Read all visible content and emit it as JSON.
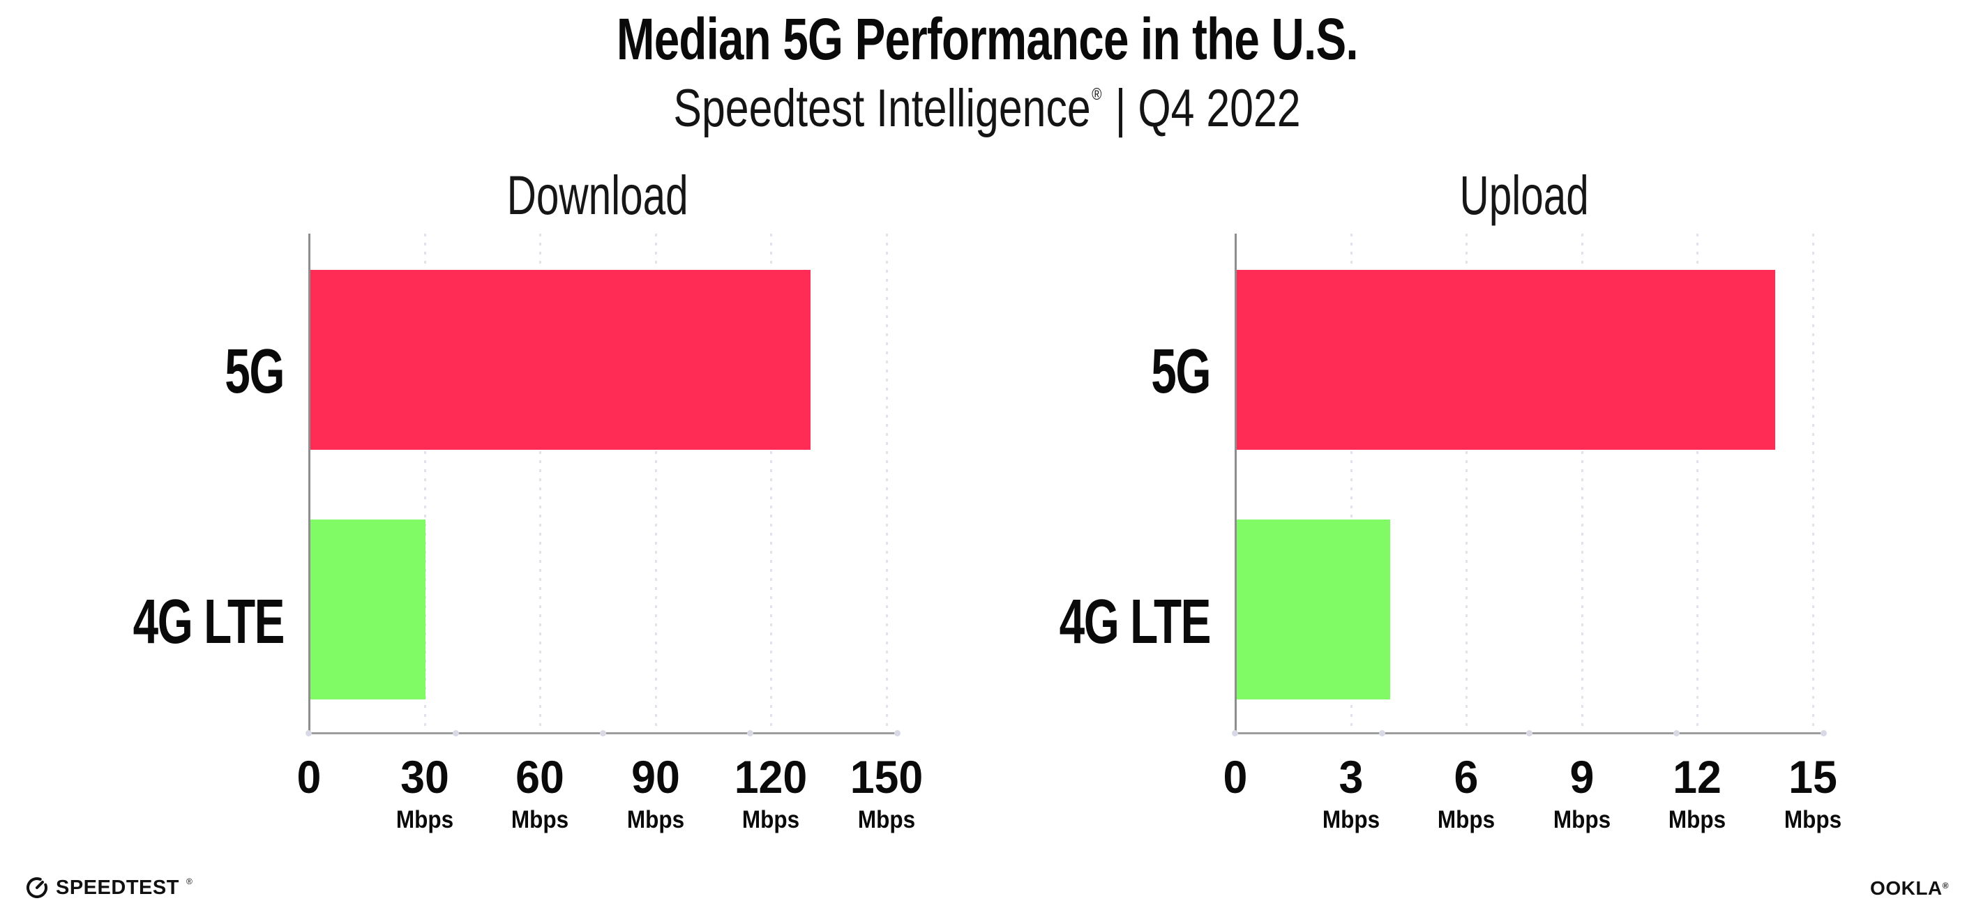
{
  "header": {
    "title": "Median 5G Performance in the U.S.",
    "subtitle_brand": "Speedtest Intelligence",
    "subtitle_reg": "®",
    "subtitle_rest": "| Q4 2022"
  },
  "chart_data": {
    "type": "bar",
    "orientation": "horizontal",
    "title": "Median 5G Performance in the U.S.",
    "subtitle": "Speedtest Intelligence® | Q4 2022",
    "categories": [
      "5G",
      "4G LTE"
    ],
    "bar_colors": [
      "#FF2D55",
      "#80FB66"
    ],
    "unit": "Mbps",
    "grid": "dotted-vertical-at-ticks",
    "legend": "none",
    "panels": [
      {
        "title": "Download",
        "values": [
          130,
          30
        ],
        "xlim": [
          0,
          150
        ],
        "xticks": [
          0,
          30,
          60,
          90,
          120,
          150
        ]
      },
      {
        "title": "Upload",
        "values": [
          14,
          4
        ],
        "xlim": [
          0,
          15
        ],
        "xticks": [
          0,
          3,
          6,
          9,
          12,
          15
        ]
      }
    ]
  },
  "colors": {
    "bar_5g": "#FF2D55",
    "bar_4g_lte": "#80FB66",
    "axis_line": "#9C9C9C",
    "y_axis_line": "#8E8E8E",
    "gridline_dots": "#E2E2EC",
    "axis_quarter_dots": "#D9D9E5",
    "text": "#0D0D0D",
    "background": "#FFFFFF"
  },
  "footer": {
    "speedtest_label": "SPEEDTEST",
    "speedtest_reg": "®",
    "ookla_label": "OOKLA",
    "ookla_reg": "®"
  }
}
